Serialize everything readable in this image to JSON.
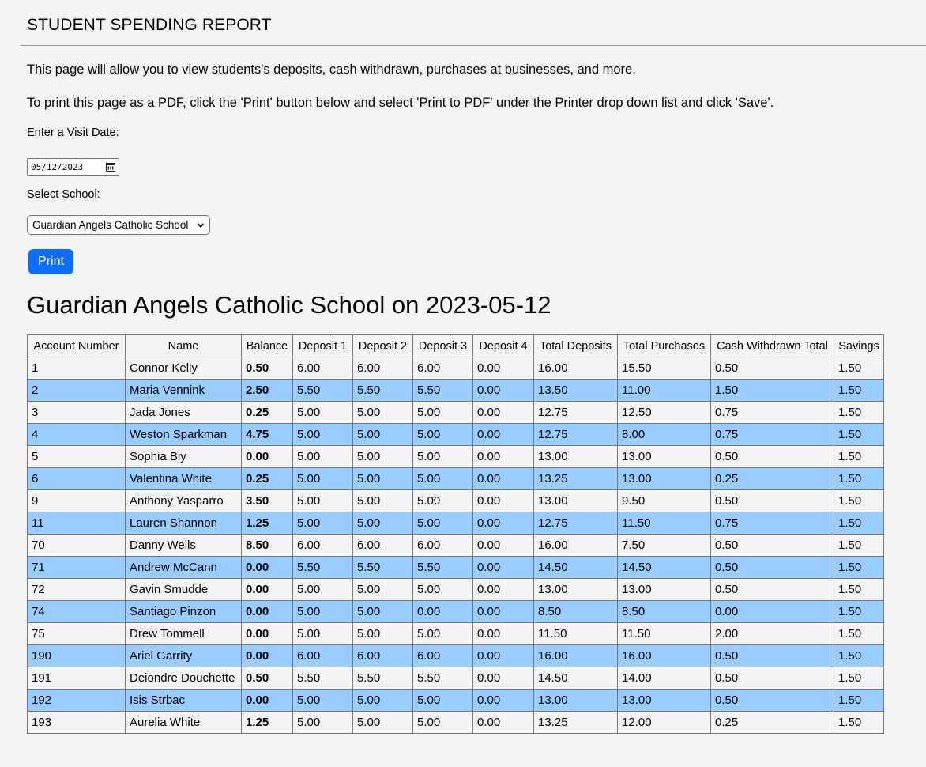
{
  "header": {
    "title": "STUDENT SPENDING REPORT"
  },
  "intro": {
    "line1": "This page will allow you to view students's deposits, cash withdrawn, purchases at businesses, and more.",
    "line2": "To print this page as a PDF, click the 'Print' button below and select 'Print to PDF' under the Printer drop down list and click 'Save'."
  },
  "form": {
    "date_label": "Enter a Visit Date:",
    "date_value": "05/12/2023",
    "school_label": "Select School:",
    "school_value": "Guardian Angels Catholic School",
    "print_label": "Print"
  },
  "report": {
    "heading": "Guardian Angels Catholic School on 2023-05-12",
    "columns": [
      "Account Number",
      "Name",
      "Balance",
      "Deposit 1",
      "Deposit 2",
      "Deposit 3",
      "Deposit 4",
      "Total Deposits",
      "Total Purchases",
      "Cash Withdrawn Total",
      "Savings"
    ],
    "rows": [
      [
        "1",
        "Connor Kelly",
        "0.50",
        "6.00",
        "6.00",
        "6.00",
        "0.00",
        "16.00",
        "15.50",
        "0.50",
        "1.50"
      ],
      [
        "2",
        "Maria Vennink",
        "2.50",
        "5.50",
        "5.50",
        "5.50",
        "0.00",
        "13.50",
        "11.00",
        "1.50",
        "1.50"
      ],
      [
        "3",
        "Jada Jones",
        "0.25",
        "5.00",
        "5.00",
        "5.00",
        "0.00",
        "12.75",
        "12.50",
        "0.75",
        "1.50"
      ],
      [
        "4",
        "Weston Sparkman",
        "4.75",
        "5.00",
        "5.00",
        "5.00",
        "0.00",
        "12.75",
        "8.00",
        "0.75",
        "1.50"
      ],
      [
        "5",
        "Sophia Bly",
        "0.00",
        "5.00",
        "5.00",
        "5.00",
        "0.00",
        "13.00",
        "13.00",
        "0.50",
        "1.50"
      ],
      [
        "6",
        "Valentina White",
        "0.25",
        "5.00",
        "5.00",
        "5.00",
        "0.00",
        "13.25",
        "13.00",
        "0.25",
        "1.50"
      ],
      [
        "9",
        "Anthony Yasparro",
        "3.50",
        "5.00",
        "5.00",
        "5.00",
        "0.00",
        "13.00",
        "9.50",
        "0.50",
        "1.50"
      ],
      [
        "11",
        "Lauren Shannon",
        "1.25",
        "5.00",
        "5.00",
        "5.00",
        "0.00",
        "12.75",
        "11.50",
        "0.75",
        "1.50"
      ],
      [
        "70",
        "Danny Wells",
        "8.50",
        "6.00",
        "6.00",
        "6.00",
        "0.00",
        "16.00",
        "7.50",
        "0.50",
        "1.50"
      ],
      [
        "71",
        "Andrew McCann",
        "0.00",
        "5.50",
        "5.50",
        "5.50",
        "0.00",
        "14.50",
        "14.50",
        "0.50",
        "1.50"
      ],
      [
        "72",
        "Gavin Smudde",
        "0.00",
        "5.00",
        "5.00",
        "5.00",
        "0.00",
        "13.00",
        "13.00",
        "0.50",
        "1.50"
      ],
      [
        "74",
        "Santiago Pinzon",
        "0.00",
        "5.00",
        "5.00",
        "0.00",
        "0.00",
        "8.50",
        "8.50",
        "0.00",
        "1.50"
      ],
      [
        "75",
        "Drew Tommell",
        "0.00",
        "5.00",
        "5.00",
        "5.00",
        "0.00",
        "11.50",
        "11.50",
        "2.00",
        "1.50"
      ],
      [
        "190",
        "Ariel Garrity",
        "0.00",
        "6.00",
        "6.00",
        "6.00",
        "0.00",
        "16.00",
        "16.00",
        "0.50",
        "1.50"
      ],
      [
        "191",
        "Deiondre Douchette",
        "0.50",
        "5.50",
        "5.50",
        "5.50",
        "0.00",
        "14.50",
        "14.00",
        "0.50",
        "1.50"
      ],
      [
        "192",
        "Isis Strbac",
        "0.00",
        "5.00",
        "5.00",
        "5.00",
        "0.00",
        "13.00",
        "13.00",
        "0.50",
        "1.50"
      ],
      [
        "193",
        "Aurelia White",
        "1.25",
        "5.00",
        "5.00",
        "5.00",
        "0.00",
        "13.25",
        "12.00",
        "0.25",
        "1.50"
      ]
    ]
  },
  "colors": {
    "button": "#0d6efd",
    "stripe": "#99ccff",
    "background": "#f4f4f4"
  },
  "icons": {
    "date_picker": "calendar-icon",
    "select": "chevron-down-icon"
  }
}
